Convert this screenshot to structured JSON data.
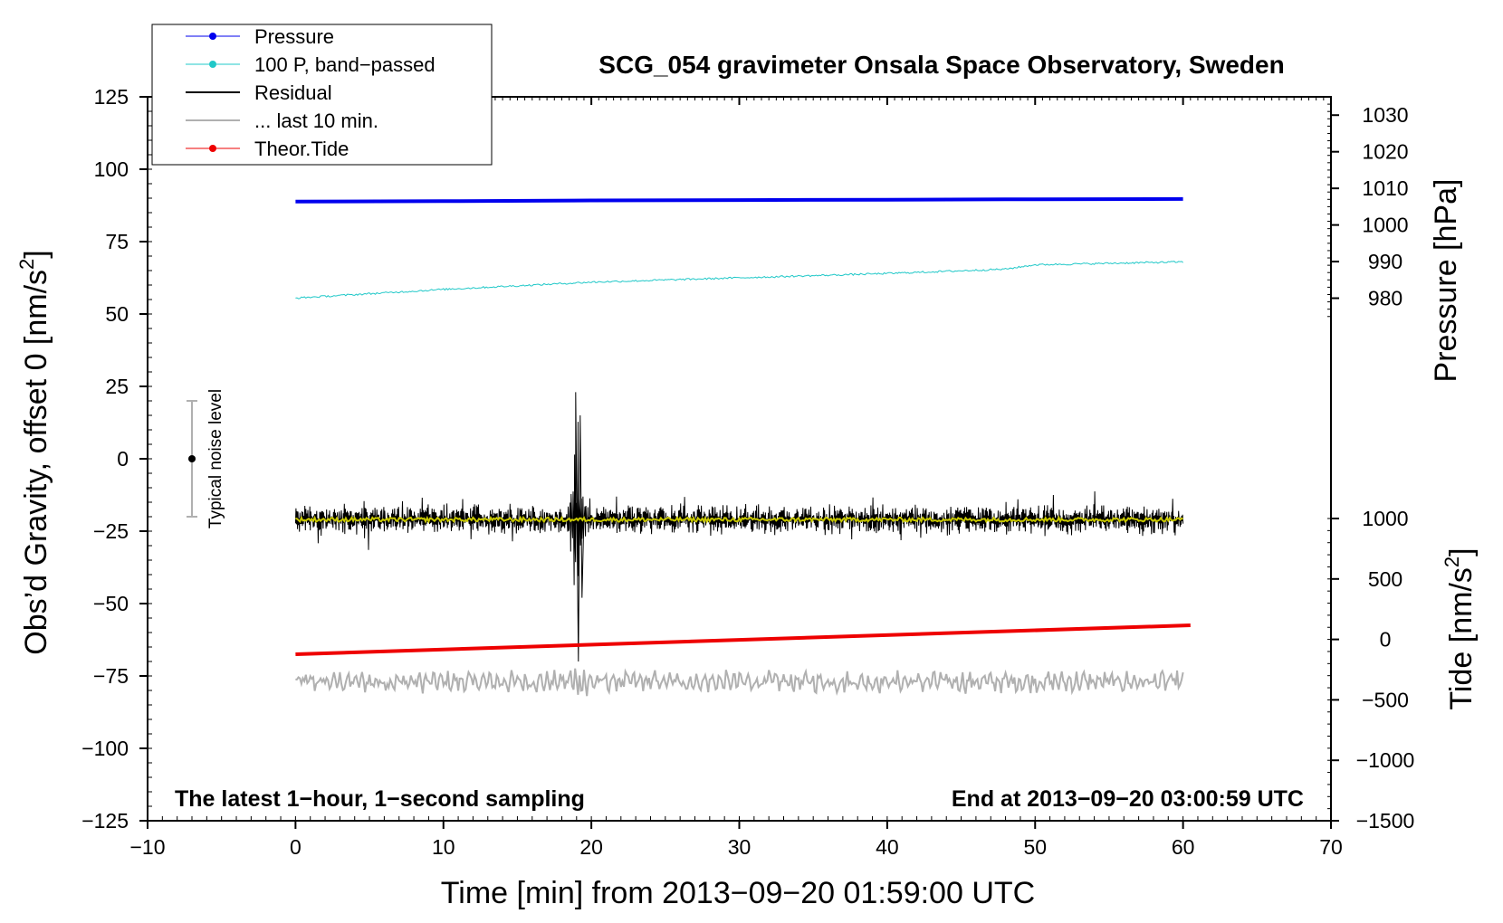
{
  "chart_data": {
    "type": "line",
    "title": "SCG_054 gravimeter Onsala Space Observatory, Sweden",
    "xlabel": "Time [min] from 2013−09−20 01:59:00 UTC",
    "ylabel_left_main": "Obs’d Gravity, offset 0 [nm/s",
    "ylabel_left_sup": "2",
    "ylabel_left_end": "]",
    "ylabel_right_top": "Pressure [hPa]",
    "ylabel_right_bottom_main": "Tide [nm/s",
    "ylabel_right_bottom_sup": "2",
    "ylabel_right_bottom_end": "]",
    "xlim": [
      -10,
      70
    ],
    "ylim_left": [
      -125,
      125
    ],
    "xticks": [
      -10,
      0,
      10,
      20,
      30,
      40,
      50,
      60,
      70
    ],
    "xtick_labels": [
      "−10",
      "0",
      "10",
      "20",
      "30",
      "40",
      "50",
      "60",
      "70"
    ],
    "yticks_left": [
      125,
      100,
      75,
      50,
      25,
      0,
      -25,
      -50,
      -75,
      -100,
      -125
    ],
    "ytick_labels_left": [
      "125",
      "100",
      "75",
      "50",
      "25",
      "0",
      "−25",
      "−50",
      "−75",
      "−100",
      "−125"
    ],
    "pressure_axis": {
      "range": [
        970,
        1035
      ],
      "ticks": [
        1030,
        1020,
        1010,
        1000,
        990,
        980
      ],
      "tick_labels": [
        "1030",
        "1020",
        "1010",
        "1000",
        "990",
        "980"
      ]
    },
    "tide_axis": {
      "range": [
        -1500,
        1000
      ],
      "ticks": [
        1000,
        500,
        0,
        -500,
        -1000,
        -1500
      ],
      "tick_labels": [
        "1000",
        "500",
        "0",
        "−500",
        "−1000",
        "−1500"
      ]
    },
    "legend": [
      {
        "label": "Pressure",
        "color": "#0000ee",
        "style": "line-dot"
      },
      {
        "label": "100 P, band−passed",
        "color": "#20c8c8",
        "style": "line-dot"
      },
      {
        "label": "Residual",
        "color": "#000000",
        "style": "line"
      },
      {
        "label": "... last 10 min.",
        "color": "#b0b0b0",
        "style": "line"
      },
      {
        "label": "Theor.Tide",
        "color": "#ee0000",
        "style": "line-dot"
      }
    ],
    "series": [
      {
        "name": "Pressure",
        "color": "#0000ee",
        "axis": "pressure",
        "x": [
          0,
          10,
          20,
          30,
          40,
          48,
          60
        ],
        "values": [
          1006.4,
          1006.5,
          1006.7,
          1006.8,
          1006.9,
          1007.0,
          1007.1
        ]
      },
      {
        "name": "100 P, band−passed",
        "color": "#20c8c8",
        "axis": "left",
        "x": [
          0,
          10,
          20,
          30,
          40,
          48,
          50,
          60
        ],
        "values": [
          55.5,
          58.5,
          61,
          62.5,
          64,
          65.5,
          67,
          68
        ]
      },
      {
        "name": "Residual",
        "color": "#000000",
        "axis": "left",
        "baseline": -21,
        "noise_amplitude": 4,
        "event_minute": 19,
        "event_peak_max": 23,
        "event_peak_min": -70
      },
      {
        "name": "Residual mean",
        "color": "#c8c800",
        "axis": "left",
        "baseline": -21
      },
      {
        "name": "... last 10 min.",
        "color": "#b0b0b0",
        "axis": "left",
        "baseline": -77,
        "noise_amplitude": 3
      },
      {
        "name": "Theor.Tide",
        "color": "#ee0000",
        "axis": "left",
        "x": [
          0,
          60.5
        ],
        "values": [
          -67.5,
          -57.5
        ]
      }
    ],
    "noise_bar": {
      "label": "Typical noise level",
      "x": -7,
      "center": 0,
      "low": -20,
      "high": 20
    },
    "annotations": {
      "bottom_left": "The latest 1−hour, 1−second sampling",
      "bottom_right": "End at 2013−09−20 03:00:59 UTC"
    }
  }
}
